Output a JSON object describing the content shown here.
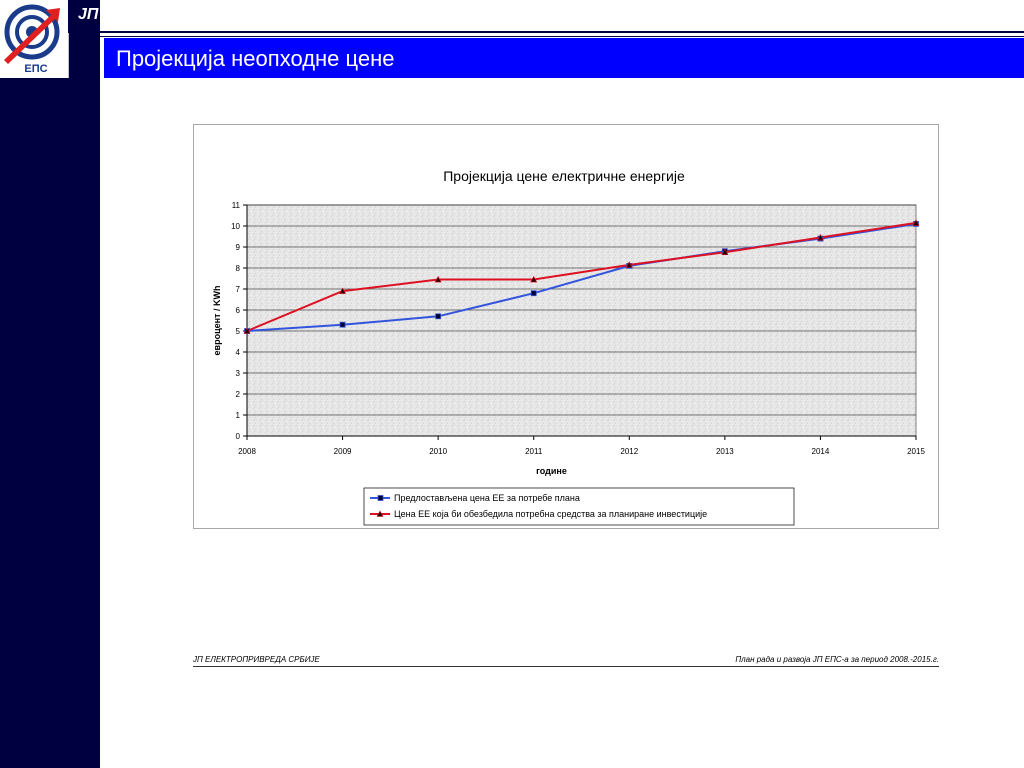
{
  "header": {
    "org_abbrev": "ЈП",
    "logo_text": "ЕПС",
    "title": "Пројекција неопходне цене"
  },
  "colors": {
    "sidebar": "#000040",
    "title_bar": "#0000ff",
    "series_1": "#3355dd",
    "series_2": "#dd1122",
    "logo_red": "#e02020",
    "logo_blue": "#1a3a8a"
  },
  "icons": {
    "logo": "eps-logo-icon"
  },
  "chart_data": {
    "type": "line",
    "title": "Пројекција цене електричне енергије",
    "xlabel": "године",
    "ylabel": "евроцент / KWh",
    "x": [
      "2008",
      "2009",
      "2010",
      "2011",
      "2012",
      "2013",
      "2014",
      "2015"
    ],
    "ylim": [
      0,
      11
    ],
    "yticks": [
      "0",
      "1",
      "2",
      "3",
      "4",
      "5",
      "6",
      "7",
      "8",
      "9",
      "10",
      "11"
    ],
    "grid": true,
    "legend_position": "bottom",
    "series": [
      {
        "name": "Предлостављена цена ЕЕ за потребе плана",
        "values": [
          5.0,
          5.3,
          5.7,
          6.8,
          8.1,
          8.8,
          9.4,
          10.1
        ],
        "color": "#3355dd",
        "marker": "square"
      },
      {
        "name": "Цена ЕЕ која би обезбедила потребна средства за планиране инвестиције",
        "values": [
          5.0,
          6.9,
          7.45,
          7.45,
          8.15,
          8.75,
          9.45,
          10.15
        ],
        "color": "#dd1122",
        "marker": "triangle"
      }
    ]
  },
  "footer": {
    "left": "ЈП ЕЛЕКТРОПРИВРЕДА СРБИЈЕ",
    "right": "План рада и развоја ЈП ЕПС-а за период 2008.-2015.г."
  }
}
